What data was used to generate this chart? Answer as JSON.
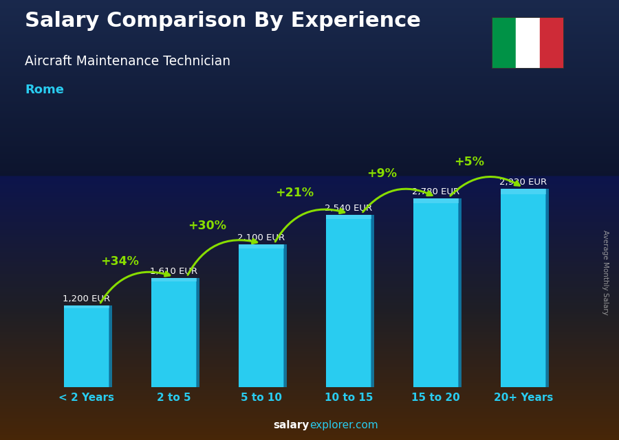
{
  "title_main": "Salary Comparison By Experience",
  "title_sub": "Aircraft Maintenance Technician",
  "title_city": "Rome",
  "categories": [
    "< 2 Years",
    "2 to 5",
    "5 to 10",
    "10 to 15",
    "15 to 20",
    "20+ Years"
  ],
  "values": [
    1200,
    1610,
    2100,
    2540,
    2780,
    2920
  ],
  "pct_changes": [
    "+34%",
    "+30%",
    "+21%",
    "+9%",
    "+5%"
  ],
  "bar_color_main": "#1ab4e8",
  "bar_color_face": "#29ccf0",
  "bar_color_side": "#0e88b8",
  "background_colors": [
    "#0d1b2a",
    "#1a2a3a",
    "#2a3040",
    "#3a3020",
    "#4a3818",
    "#5a4020",
    "#3a2808",
    "#1a1000"
  ],
  "arrow_color": "#88dd00",
  "pct_color": "#88dd00",
  "value_color": "#ffffff",
  "title_color": "#ffffff",
  "city_color": "#29ccf0",
  "xticklabel_color": "#29ccf0",
  "footer_salary_color": "#ffffff",
  "footer_explorer_color": "#29ccf0",
  "ylabel": "Average Monthly Salary",
  "ylabel_color": "#aaaaaa",
  "ylim": [
    0,
    3500
  ],
  "flag_green": "#009246",
  "flag_white": "#ffffff",
  "flag_red": "#ce2b37"
}
